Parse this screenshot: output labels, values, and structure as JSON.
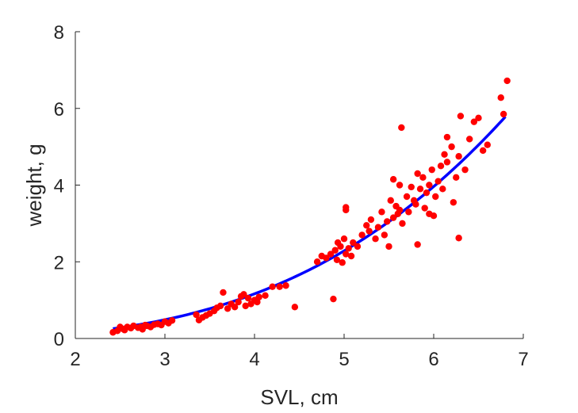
{
  "chart_data": {
    "type": "scatter",
    "title": "",
    "xlabel": "SVL, cm",
    "ylabel": "weight, g",
    "xlim": [
      2,
      7
    ],
    "ylim": [
      0,
      8
    ],
    "xticks": [
      "2",
      "3",
      "4",
      "5",
      "6",
      "7"
    ],
    "yticks": [
      "0",
      "2",
      "4",
      "6",
      "8"
    ],
    "grid": false,
    "box": false,
    "colors": {
      "points": "#ff0000",
      "fit": "#0000ff",
      "axes": "#262626"
    },
    "fit": {
      "form": "power",
      "a": 0.0177,
      "b": 3.02,
      "x_range": [
        2.42,
        6.8
      ]
    },
    "series": [
      {
        "type": "scatter",
        "points": [
          [
            2.42,
            0.16
          ],
          [
            2.47,
            0.2
          ],
          [
            2.5,
            0.3
          ],
          [
            2.53,
            0.25
          ],
          [
            2.55,
            0.22
          ],
          [
            2.58,
            0.3
          ],
          [
            2.62,
            0.27
          ],
          [
            2.65,
            0.33
          ],
          [
            2.7,
            0.28
          ],
          [
            2.73,
            0.3
          ],
          [
            2.75,
            0.24
          ],
          [
            2.78,
            0.35
          ],
          [
            2.8,
            0.33
          ],
          [
            2.84,
            0.3
          ],
          [
            2.88,
            0.36
          ],
          [
            2.92,
            0.38
          ],
          [
            2.96,
            0.35
          ],
          [
            3.0,
            0.44
          ],
          [
            3.04,
            0.4
          ],
          [
            3.08,
            0.47
          ],
          [
            3.35,
            0.62
          ],
          [
            3.38,
            0.48
          ],
          [
            3.42,
            0.55
          ],
          [
            3.46,
            0.6
          ],
          [
            3.5,
            0.65
          ],
          [
            3.55,
            0.72
          ],
          [
            3.58,
            0.8
          ],
          [
            3.62,
            0.85
          ],
          [
            3.65,
            1.2
          ],
          [
            3.7,
            0.78
          ],
          [
            3.74,
            0.9
          ],
          [
            3.78,
            0.82
          ],
          [
            3.82,
            0.95
          ],
          [
            3.85,
            1.1
          ],
          [
            3.88,
            1.15
          ],
          [
            3.9,
            0.85
          ],
          [
            3.93,
            1.05
          ],
          [
            3.96,
            0.9
          ],
          [
            4.0,
            1.0
          ],
          [
            4.03,
            0.95
          ],
          [
            4.05,
            1.08
          ],
          [
            4.12,
            1.12
          ],
          [
            4.2,
            1.35
          ],
          [
            4.28,
            1.35
          ],
          [
            4.35,
            1.38
          ],
          [
            4.45,
            0.82
          ],
          [
            4.88,
            1.03
          ],
          [
            4.7,
            2.0
          ],
          [
            4.75,
            2.15
          ],
          [
            4.8,
            2.1
          ],
          [
            4.85,
            2.2
          ],
          [
            4.9,
            2.3
          ],
          [
            4.93,
            2.5
          ],
          [
            4.96,
            2.4
          ],
          [
            5.0,
            2.6
          ],
          [
            5.02,
            2.2
          ],
          [
            5.05,
            2.35
          ],
          [
            5.08,
            2.15
          ],
          [
            5.1,
            2.5
          ],
          [
            5.02,
            3.35
          ],
          [
            5.02,
            3.42
          ],
          [
            4.98,
            1.98
          ],
          [
            4.92,
            2.05
          ],
          [
            5.15,
            2.4
          ],
          [
            5.2,
            2.7
          ],
          [
            5.25,
            2.95
          ],
          [
            5.28,
            2.8
          ],
          [
            5.3,
            3.1
          ],
          [
            5.35,
            2.6
          ],
          [
            5.38,
            2.9
          ],
          [
            5.42,
            3.3
          ],
          [
            5.45,
            2.7
          ],
          [
            5.48,
            3.05
          ],
          [
            5.5,
            2.4
          ],
          [
            5.52,
            3.6
          ],
          [
            5.55,
            3.15
          ],
          [
            5.58,
            3.45
          ],
          [
            5.6,
            3.25
          ],
          [
            5.62,
            3.35
          ],
          [
            5.55,
            4.15
          ],
          [
            5.62,
            4.0
          ],
          [
            5.64,
            5.5
          ],
          [
            5.65,
            3.0
          ],
          [
            5.7,
            3.7
          ],
          [
            5.72,
            3.3
          ],
          [
            5.75,
            3.95
          ],
          [
            5.78,
            3.6
          ],
          [
            5.8,
            3.5
          ],
          [
            5.82,
            4.3
          ],
          [
            5.85,
            3.9
          ],
          [
            5.88,
            4.2
          ],
          [
            5.9,
            3.4
          ],
          [
            5.92,
            3.8
          ],
          [
            5.95,
            4.0
          ],
          [
            5.98,
            4.4
          ],
          [
            6.0,
            3.2
          ],
          [
            6.02,
            3.7
          ],
          [
            6.05,
            4.1
          ],
          [
            6.08,
            4.5
          ],
          [
            6.1,
            3.9
          ],
          [
            6.12,
            4.8
          ],
          [
            6.15,
            4.6
          ],
          [
            6.2,
            5.0
          ],
          [
            6.25,
            4.2
          ],
          [
            6.28,
            4.75
          ],
          [
            6.3,
            5.8
          ],
          [
            6.35,
            4.4
          ],
          [
            6.4,
            5.2
          ],
          [
            6.45,
            5.65
          ],
          [
            6.5,
            5.75
          ],
          [
            6.55,
            4.9
          ],
          [
            6.6,
            5.05
          ],
          [
            6.75,
            6.28
          ],
          [
            6.78,
            5.85
          ],
          [
            6.82,
            6.72
          ],
          [
            6.28,
            2.62
          ],
          [
            5.82,
            2.45
          ],
          [
            6.15,
            5.25
          ],
          [
            6.22,
            3.55
          ],
          [
            5.95,
            3.25
          ]
        ]
      }
    ]
  }
}
